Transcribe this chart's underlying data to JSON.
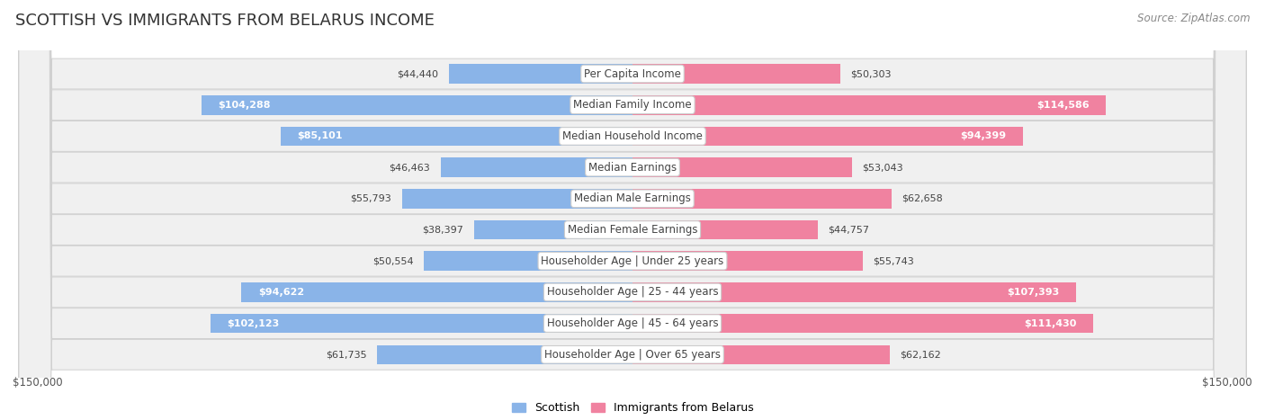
{
  "title": "SCOTTISH VS IMMIGRANTS FROM BELARUS INCOME",
  "source": "Source: ZipAtlas.com",
  "categories": [
    "Per Capita Income",
    "Median Family Income",
    "Median Household Income",
    "Median Earnings",
    "Median Male Earnings",
    "Median Female Earnings",
    "Householder Age | Under 25 years",
    "Householder Age | 25 - 44 years",
    "Householder Age | 45 - 64 years",
    "Householder Age | Over 65 years"
  ],
  "scottish_values": [
    44440,
    104288,
    85101,
    46463,
    55793,
    38397,
    50554,
    94622,
    102123,
    61735
  ],
  "belarus_values": [
    50303,
    114586,
    94399,
    53043,
    62658,
    44757,
    55743,
    107393,
    111430,
    62162
  ],
  "scottish_labels": [
    "$44,440",
    "$104,288",
    "$85,101",
    "$46,463",
    "$55,793",
    "$38,397",
    "$50,554",
    "$94,622",
    "$102,123",
    "$61,735"
  ],
  "belarus_labels": [
    "$50,303",
    "$114,586",
    "$94,399",
    "$53,043",
    "$62,658",
    "$44,757",
    "$55,743",
    "$107,393",
    "$111,430",
    "$62,162"
  ],
  "max_value": 150000,
  "scottish_color": "#8ab4e8",
  "belarus_color": "#f082a0",
  "scottish_label_inside_threshold": 70000,
  "belarus_label_inside_threshold": 70000,
  "bg_row_color": "#f0f0f0",
  "bg_color": "#ffffff",
  "bar_height": 0.62,
  "title_fontsize": 13,
  "label_fontsize": 8.5,
  "value_fontsize": 8.0,
  "axis_label_fontsize": 8.5,
  "legend_fontsize": 9,
  "source_fontsize": 8.5,
  "scottish_legend": "Scottish",
  "belarus_legend": "Immigrants from Belarus",
  "x_axis_label_left": "$150,000",
  "x_axis_label_right": "$150,000"
}
